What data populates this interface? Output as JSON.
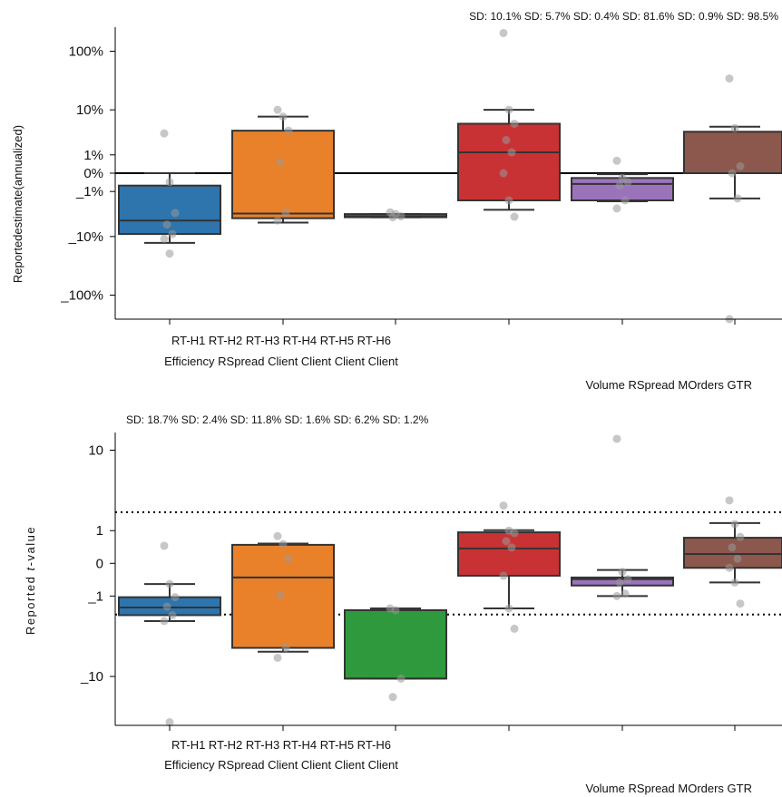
{
  "colors": {
    "blue": "#2e74ad",
    "orange": "#e8812a",
    "green": "#2f9a3d",
    "red": "#c93234",
    "purple": "#9b73bb",
    "brown": "#8c574c",
    "point": "#999999",
    "line": "#333333"
  },
  "chart_data": [
    {
      "type": "box",
      "title": "",
      "annotation": "SD: 10.1% SD: 5.7% SD: 0.4% SD: 81.6% SD: 0.9% SD: 98.5%",
      "ylabel": "Reportedestimate(annualized)",
      "xtick_line1": "RT-H1 RT-H2 RT-H3 RT-H4 RT-H5 RT-H6",
      "xtick_line2": "Efficiency RSpread Client Client Client Client",
      "xtick_right": "Volume RSpread MOrders GTR",
      "scale": "symlog",
      "ylim": [
        -250,
        250
      ],
      "yticks": [
        {
          "v": 100,
          "label": "100%"
        },
        {
          "v": 10,
          "label": "10%"
        },
        {
          "v": 1,
          "label": "1%"
        },
        {
          "v": 0,
          "label": "0%"
        },
        {
          "v": -1,
          "label": "_1%"
        },
        {
          "v": -10,
          "label": "_10%"
        },
        {
          "v": -100,
          "label": "_100%"
        }
      ],
      "reference_lines": [
        {
          "v": 0,
          "style": "solid"
        }
      ],
      "boxes": [
        {
          "color": "blue",
          "q1": -9,
          "median": -5,
          "q3": -0.6,
          "wlo": -13,
          "whi": 0.0,
          "points": [
            3.5,
            -0.4,
            -3.5,
            -6,
            -9,
            -11,
            -20
          ]
        },
        {
          "color": "orange",
          "q1": -4.5,
          "median": -3.6,
          "q3": 4,
          "wlo": -5.5,
          "whi": 7.5,
          "points": [
            10,
            7.5,
            4,
            0.5,
            -3.5,
            -5
          ]
        },
        {
          "color": "green",
          "q1": -4.3,
          "median": -4.1,
          "q3": -3.7,
          "wlo": -4.3,
          "whi": -3.7,
          "points": [
            -3.4,
            -3.7,
            -4.1,
            -4.3
          ]
        },
        {
          "color": "red",
          "q1": -1.8,
          "median": 1.2,
          "q3": 5.5,
          "wlo": -3,
          "whi": 10,
          "points": [
            200,
            10,
            5.5,
            2.5,
            1.2,
            0,
            -1.8,
            -4.2
          ]
        },
        {
          "color": "purple",
          "q1": -1.8,
          "median": -0.5,
          "q3": -0.2,
          "wlo": -1.9,
          "whi": -0.04,
          "points": [
            0.6,
            -0.2,
            -0.4,
            -0.6,
            -1.8,
            -2.8
          ]
        },
        {
          "color": "brown",
          "q1": 0.0,
          "median": 0.0,
          "q3": 3.8,
          "wlo": -1.6,
          "whi": 4.8,
          "points": [
            35,
            4.5,
            0.3,
            0.0,
            -1.6,
            -250
          ]
        }
      ]
    },
    {
      "type": "box",
      "title": "",
      "annotation": "SD: 18.7% SD: 2.4% SD: 11.8% SD: 1.6% SD: 6.2% SD: 1.2%",
      "ylabel": "Reported t-value",
      "ylabel_parts": [
        "Reported ",
        "t",
        "-value"
      ],
      "xtick_line1": "RT-H1 RT-H2 RT-H3 RT-H4 RT-H5 RT-H6",
      "xtick_line2": "Efficiency RSpread Client Client Client Client",
      "xtick_right": "Volume RSpread MOrders GTR",
      "scale": "symlog",
      "ylim": [
        -30,
        15
      ],
      "yticks": [
        {
          "v": 10,
          "label": "10"
        },
        {
          "v": 1,
          "label": "1"
        },
        {
          "v": 0,
          "label": "0"
        },
        {
          "v": -1,
          "label": "_1"
        },
        {
          "v": -10,
          "label": "_10"
        }
      ],
      "reference_lines": [
        {
          "v": 1.96,
          "style": "dotted"
        },
        {
          "v": -1.96,
          "style": "dotted"
        }
      ],
      "boxes": [
        {
          "color": "blue",
          "q1": -2.0,
          "median": -1.55,
          "q3": -1.05,
          "wlo": -2.4,
          "whi": -0.55,
          "points": [
            0.45,
            -0.55,
            -1.05,
            -1.5,
            -2.0,
            -2.4,
            -28
          ]
        },
        {
          "color": "orange",
          "q1": -5.0,
          "median": -0.35,
          "q3": 0.48,
          "wlo": -5.5,
          "whi": 0.52,
          "points": [
            0.78,
            0.5,
            0.1,
            -0.95,
            -5.0,
            -6.4
          ]
        },
        {
          "color": "green",
          "q1": -10.5,
          "median": -10.5,
          "q3": -1.7,
          "wlo": -10.5,
          "whi": -1.6,
          "points": [
            -1.6,
            -1.7,
            -10.5,
            -16
          ]
        },
        {
          "color": "red",
          "q1": -0.3,
          "median": 0.37,
          "q3": 0.93,
          "wlo": -1.6,
          "whi": 1.02,
          "points": [
            2.4,
            1.0,
            0.9,
            0.6,
            0.4,
            -0.3,
            -1.6,
            -3.0
          ]
        },
        {
          "color": "purple",
          "q1": -0.6,
          "median": -0.4,
          "q3": -0.35,
          "wlo": -1.0,
          "whi": -0.15,
          "points": [
            13,
            -0.2,
            -0.4,
            -0.5,
            -0.9,
            -1.0
          ]
        },
        {
          "color": "brown",
          "q1": -0.1,
          "median": 0.22,
          "q3": 0.72,
          "wlo": -0.5,
          "whi": 1.35,
          "points": [
            2.8,
            1.3,
            0.75,
            0.4,
            0.1,
            -0.1,
            -0.5,
            -1.35
          ]
        }
      ]
    }
  ]
}
